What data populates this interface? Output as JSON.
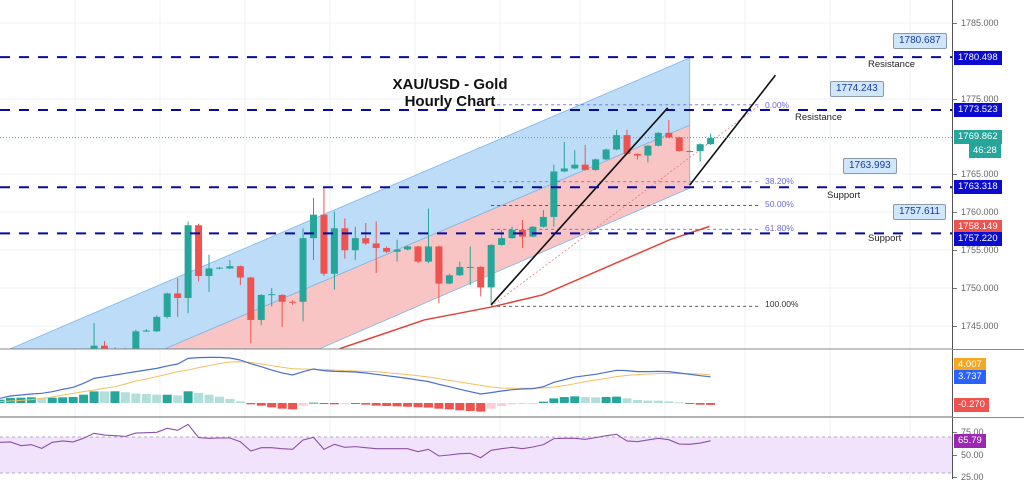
{
  "title_lines": [
    "XAU/USD - Gold",
    "Hourly Chart"
  ],
  "colors": {
    "up": "#26a69a",
    "down": "#ef5350",
    "level": "#0a0a9e",
    "channel_blue": "#bcdcf7",
    "channel_red": "#f8c4c4",
    "sma": "#e0443a",
    "macd": "#4a6fd0",
    "signal": "#f0c060",
    "rsi": "#8e4fa8",
    "rsi_band": "#f1e3fb"
  },
  "price_axis": {
    "ticks": [
      "1785.000",
      "1775.000",
      "1765.000",
      "1760.000",
      "1755.000",
      "1750.000",
      "1745.000"
    ]
  },
  "price_badges": [
    {
      "label": "1780.498",
      "color": "#0a0ad0"
    },
    {
      "label": "1773.523",
      "color": "#0a0ad0"
    },
    {
      "label": "1769.862",
      "color": "#26a69a"
    },
    {
      "label": "46:28",
      "color": "#26a69a"
    },
    {
      "label": "1763.318",
      "color": "#0a0ad0"
    },
    {
      "label": "1758.149",
      "color": "#ef5350"
    },
    {
      "label": "1757.220",
      "color": "#0a0ad0"
    }
  ],
  "levels": [
    {
      "price": 1780.498,
      "callout": "1780.687",
      "note": "Resistance"
    },
    {
      "price": 1773.523,
      "callout": "1774.243",
      "note": "Resistance"
    },
    {
      "price": 1763.318,
      "callout": "1763.993",
      "note": "Support"
    },
    {
      "price": 1757.22,
      "callout": "1757.611",
      "note": "Support"
    }
  ],
  "last_price": 1769.862,
  "fibonacci": {
    "high": 1774.2,
    "low": 1747.6,
    "levels": [
      {
        "ratio": 0,
        "label": "0.00%"
      },
      {
        "ratio": 0.382,
        "label": "38.20%"
      },
      {
        "ratio": 0.5,
        "label": "50.00%"
      },
      {
        "ratio": 0.618,
        "label": "61.80%"
      },
      {
        "ratio": 1,
        "label": "100.00%"
      }
    ]
  },
  "candles_first_bar": 9,
  "candles": [
    [
      1741.8,
      1745.4,
      1741.8,
      1742.4
    ],
    [
      1742.4,
      1743.0,
      1741.8,
      1741.8
    ],
    [
      1741.9,
      1742.2,
      1741.8,
      1742.0
    ],
    [
      1742.0,
      1742.1,
      1741.8,
      1741.9
    ],
    [
      1741.8,
      1744.5,
      1741.8,
      1744.3
    ],
    [
      1744.3,
      1744.6,
      1744.2,
      1744.4
    ],
    [
      1744.3,
      1746.4,
      1744.2,
      1746.2
    ],
    [
      1746.2,
      1749.4,
      1746.0,
      1749.3
    ],
    [
      1749.3,
      1751.3,
      1746.2,
      1748.7
    ],
    [
      1748.7,
      1758.8,
      1746.7,
      1758.3
    ],
    [
      1758.3,
      1758.5,
      1750.9,
      1751.6
    ],
    [
      1751.6,
      1754.4,
      1749.5,
      1752.6
    ],
    [
      1752.6,
      1752.8,
      1752.5,
      1752.7
    ],
    [
      1752.6,
      1753.7,
      1752.5,
      1752.9
    ],
    [
      1752.9,
      1753.0,
      1750.4,
      1751.4
    ],
    [
      1751.4,
      1751.5,
      1742.7,
      1745.8
    ],
    [
      1745.8,
      1749.2,
      1745.1,
      1749.1
    ],
    [
      1749.1,
      1750.0,
      1747.6,
      1749.2
    ],
    [
      1749.1,
      1749.2,
      1744.9,
      1748.2
    ],
    [
      1748.2,
      1748.4,
      1747.8,
      1748.1
    ],
    [
      1748.2,
      1757.9,
      1745.6,
      1756.6
    ],
    [
      1756.6,
      1761.9,
      1753.7,
      1759.7
    ],
    [
      1759.7,
      1763.2,
      1751.6,
      1751.9
    ],
    [
      1751.9,
      1760.1,
      1749.8,
      1757.9
    ],
    [
      1757.9,
      1759.2,
      1753.9,
      1755.0
    ],
    [
      1755.0,
      1758.1,
      1753.7,
      1756.6
    ],
    [
      1756.6,
      1758.6,
      1755.7,
      1755.9
    ],
    [
      1755.9,
      1758.8,
      1752.0,
      1755.3
    ],
    [
      1755.3,
      1755.5,
      1754.6,
      1754.8
    ],
    [
      1754.8,
      1756.4,
      1753.5,
      1755.1
    ],
    [
      1755.1,
      1755.6,
      1755.0,
      1755.5
    ],
    [
      1755.5,
      1755.6,
      1753.3,
      1753.5
    ],
    [
      1753.5,
      1760.5,
      1753.3,
      1755.5
    ],
    [
      1755.5,
      1755.6,
      1748.0,
      1750.6
    ],
    [
      1750.6,
      1751.9,
      1750.5,
      1751.7
    ],
    [
      1751.7,
      1753.5,
      1751.6,
      1752.8
    ],
    [
      1752.8,
      1755.5,
      1750.4,
      1752.8
    ],
    [
      1752.8,
      1752.9,
      1748.9,
      1750.1
    ],
    [
      1750.1,
      1755.8,
      1747.8,
      1755.7
    ],
    [
      1755.7,
      1757.7,
      1755.6,
      1756.6
    ],
    [
      1756.6,
      1758.1,
      1756.5,
      1757.7
    ],
    [
      1757.7,
      1759.0,
      1755.3,
      1756.8
    ],
    [
      1756.8,
      1758.2,
      1756.7,
      1758.1
    ],
    [
      1758.1,
      1760.3,
      1758.0,
      1759.4
    ],
    [
      1759.4,
      1766.3,
      1758.1,
      1765.4
    ],
    [
      1765.4,
      1769.3,
      1765.3,
      1765.8
    ],
    [
      1765.8,
      1768.2,
      1765.7,
      1766.3
    ],
    [
      1766.3,
      1768.9,
      1765.5,
      1765.6
    ],
    [
      1765.6,
      1767.1,
      1765.5,
      1767.0
    ],
    [
      1767.0,
      1768.4,
      1766.9,
      1768.3
    ],
    [
      1768.3,
      1770.9,
      1768.2,
      1770.2
    ],
    [
      1770.2,
      1770.9,
      1767.6,
      1767.7
    ],
    [
      1767.7,
      1767.8,
      1767.0,
      1767.5
    ],
    [
      1767.5,
      1768.9,
      1766.6,
      1768.8
    ],
    [
      1768.8,
      1770.6,
      1768.7,
      1770.5
    ],
    [
      1770.5,
      1772.2,
      1769.8,
      1769.9
    ],
    [
      1769.9,
      1770.0,
      1768.0,
      1768.1
    ],
    [
      1768.1,
      1768.2,
      1768.0,
      1768.1
    ],
    [
      1768.1,
      1769.1,
      1766.7,
      1769.0
    ],
    [
      1769.0,
      1770.4,
      1768.9,
      1769.8
    ]
  ],
  "channel": {
    "upper": [
      [
        1,
        1742.0
      ],
      [
        66,
        1780.4
      ]
    ],
    "middle": [
      [
        15.8,
        1742.0
      ],
      [
        66,
        1771.5
      ]
    ],
    "lower": [
      [
        30.6,
        1742.0
      ],
      [
        66,
        1763.2
      ]
    ]
  },
  "sma": [
    [
      32.5,
      1742.0
    ],
    [
      40.6,
      1745.8
    ],
    [
      47,
      1747.5
    ],
    [
      51.9,
      1749.1
    ],
    [
      59.6,
      1753.7
    ],
    [
      64.1,
      1756.4
    ],
    [
      67.9,
      1758.149
    ]
  ],
  "trendlines": [
    [
      [
        47,
        1747.8
      ],
      [
        63.9,
        1773.8
      ]
    ],
    [
      [
        66,
        1763.6
      ],
      [
        74.2,
        1778.1
      ]
    ]
  ],
  "macd": {
    "labels": {
      "signal": "4.007",
      "macd": "3.737",
      "hist": "-0.270"
    },
    "macd": [
      0.67,
      1.0,
      1.14,
      1.29,
      1.38,
      1.62,
      1.95,
      2.24,
      2.81,
      3.52,
      3.76,
      4.0,
      4.24,
      4.48,
      4.71,
      4.95,
      5.29,
      5.57,
      6.38,
      6.48,
      6.52,
      6.52,
      6.43,
      6.14,
      5.62,
      5.19,
      4.71,
      4.29,
      4.0,
      4.48,
      4.86,
      4.62,
      4.52,
      4.48,
      4.43,
      4.29,
      4.1,
      3.9,
      3.71,
      3.52,
      3.29,
      3.05,
      2.67,
      2.33,
      1.95,
      1.62,
      1.29,
      1.48,
      1.71,
      1.9,
      2.0,
      2.05,
      2.33,
      2.95,
      3.33,
      3.71,
      3.9,
      4.1,
      4.38,
      4.67,
      4.62,
      4.48,
      4.48,
      4.52,
      4.48,
      4.29,
      4.1,
      3.9,
      3.737
    ],
    "signal": [
      0.19,
      0.29,
      0.38,
      0.48,
      0.67,
      0.86,
      1.14,
      1.38,
      1.62,
      1.86,
      2.1,
      2.33,
      2.71,
      3.14,
      3.43,
      3.76,
      4.1,
      4.48,
      4.71,
      5.05,
      5.33,
      5.62,
      5.86,
      5.9,
      5.81,
      5.57,
      5.33,
      5.1,
      4.9,
      4.86,
      4.81,
      4.76,
      4.71,
      4.62,
      4.57,
      4.52,
      4.48,
      4.33,
      4.19,
      4.05,
      3.9,
      3.71,
      3.48,
      3.24,
      3.0,
      2.76,
      2.52,
      2.29,
      2.14,
      2.1,
      2.1,
      2.1,
      2.14,
      2.29,
      2.48,
      2.76,
      3.05,
      3.29,
      3.52,
      3.76,
      3.95,
      4.05,
      4.14,
      4.19,
      4.24,
      4.19,
      4.19,
      4.14,
      4.007
    ]
  },
  "rsi": {
    "ticks": [
      "75.00",
      "50.00",
      "25.00"
    ],
    "label": "65.79",
    "values": [
      64.1,
      64.5,
      60.4,
      61.5,
      57.4,
      64.1,
      65.6,
      64.5,
      68.6,
      74.1,
      72.2,
      71.5,
      70.7,
      74.4,
      74.8,
      75.2,
      79.6,
      77.4,
      84.1,
      69.3,
      68.5,
      68.9,
      68.9,
      64.8,
      54.4,
      58.1,
      58.1,
      57.0,
      56.3,
      66.7,
      69.6,
      56.3,
      61.9,
      58.5,
      59.3,
      58.1,
      57.0,
      57.0,
      57.0,
      57.0,
      53.7,
      56.3,
      48.9,
      50.0,
      51.5,
      51.9,
      47.0,
      55.2,
      57.0,
      58.5,
      57.0,
      58.9,
      61.5,
      68.2,
      68.5,
      68.5,
      67.4,
      69.3,
      71.5,
      73.0,
      65.6,
      64.8,
      66.7,
      68.5,
      67.0,
      62.2,
      61.9,
      63.3,
      65.79
    ]
  }
}
